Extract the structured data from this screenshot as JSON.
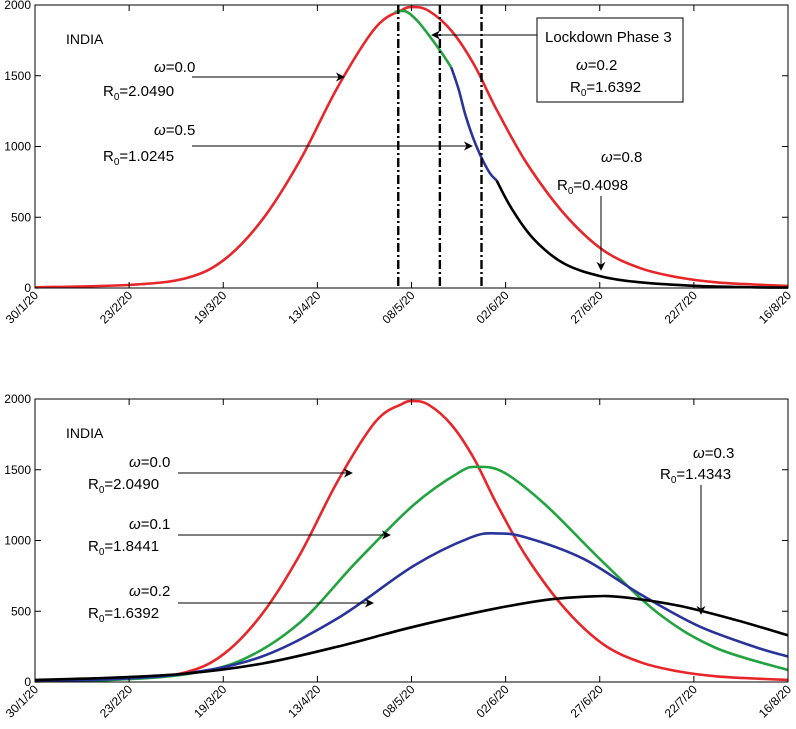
{
  "chart_data": [
    {
      "type": "line",
      "country_label": "INDIA",
      "x_tick_labels": [
        "30/1/20",
        "23/2/20",
        "19/3/20",
        "13/4/20",
        "08/5/20",
        "02/6/20",
        "27/6/20",
        "22/7/20",
        "16/8/20"
      ],
      "ylim": [
        0,
        2000
      ],
      "y_ticks": [
        0,
        500,
        1000,
        1500,
        2000
      ],
      "grid": false,
      "vertical_lines_day": [
        96,
        107,
        118
      ],
      "series": [
        {
          "color": "#e8262a",
          "points": [
            [
              0,
              5
            ],
            [
              25,
              22
            ],
            [
              40,
              70
            ],
            [
              50,
              200
            ],
            [
              60,
              480
            ],
            [
              70,
              900
            ],
            [
              80,
              1420
            ],
            [
              90,
              1840
            ],
            [
              97,
              1965
            ],
            [
              100,
              1985
            ],
            [
              104,
              1960
            ],
            [
              110,
              1820
            ],
            [
              116,
              1580
            ],
            [
              122,
              1260
            ],
            [
              130,
              880
            ],
            [
              140,
              520
            ],
            [
              150,
              270
            ],
            [
              160,
              140
            ],
            [
              170,
              75
            ],
            [
              180,
              40
            ],
            [
              190,
              25
            ],
            [
              199,
              15
            ]
          ]
        },
        {
          "color": "#21a33f",
          "points": [
            [
              95,
              1950
            ],
            [
              98,
              1955
            ],
            [
              101,
              1890
            ],
            [
              104,
              1790
            ],
            [
              107,
              1680
            ],
            [
              110,
              1560
            ]
          ]
        },
        {
          "color": "#29349a",
          "points": [
            [
              110,
              1560
            ],
            [
              112,
              1400
            ],
            [
              114,
              1200
            ],
            [
              117,
              980
            ],
            [
              120,
              820
            ],
            [
              122,
              760
            ]
          ]
        },
        {
          "color": "#000000",
          "points": [
            [
              122,
              760
            ],
            [
              126,
              560
            ],
            [
              132,
              340
            ],
            [
              140,
              170
            ],
            [
              150,
              80
            ],
            [
              160,
              40
            ],
            [
              175,
              15
            ],
            [
              190,
              5
            ],
            [
              199,
              3
            ]
          ]
        }
      ],
      "annotations": [
        {
          "omega": "=0.0",
          "r0": "=2.0490",
          "arrow_to": [
            71,
            1500
          ]
        },
        {
          "omega": "=0.5",
          "r0": "=1.0245",
          "arrow_to": [
            118,
            1000
          ]
        },
        {
          "omega": "=0.8",
          "r0": "=0.4098",
          "arrow_to": [
            123,
            90
          ]
        },
        {
          "box_title": "Lockdown Phase 3",
          "omega": "=0.2",
          "r0": "=1.6392",
          "arrow_to": [
            103,
            1780
          ]
        }
      ]
    },
    {
      "type": "line",
      "country_label": "INDIA",
      "x_tick_labels": [
        "30/1/20",
        "23/2/20",
        "19/3/20",
        "13/4/20",
        "08/5/20",
        "02/6/20",
        "27/6/20",
        "22/7/20",
        "16/8/20"
      ],
      "ylim": [
        0,
        2000
      ],
      "y_ticks": [
        0,
        500,
        1000,
        1500,
        2000
      ],
      "grid": false,
      "series": [
        {
          "color": "#e8262a",
          "points": [
            [
              0,
              5
            ],
            [
              25,
              22
            ],
            [
              40,
              70
            ],
            [
              50,
              200
            ],
            [
              60,
              480
            ],
            [
              70,
              900
            ],
            [
              80,
              1420
            ],
            [
              90,
              1840
            ],
            [
              97,
              1965
            ],
            [
              100,
              1985
            ],
            [
              104,
              1960
            ],
            [
              110,
              1820
            ],
            [
              116,
              1580
            ],
            [
              122,
              1260
            ],
            [
              130,
              880
            ],
            [
              140,
              520
            ],
            [
              150,
              270
            ],
            [
              160,
              140
            ],
            [
              170,
              75
            ],
            [
              180,
              40
            ],
            [
              190,
              25
            ],
            [
              199,
              15
            ]
          ]
        },
        {
          "color": "#21a33f",
          "points": [
            [
              0,
              5
            ],
            [
              20,
              15
            ],
            [
              40,
              55
            ],
            [
              55,
              160
            ],
            [
              70,
              420
            ],
            [
              85,
              850
            ],
            [
              100,
              1250
            ],
            [
              112,
              1480
            ],
            [
              117,
              1520
            ],
            [
              124,
              1480
            ],
            [
              135,
              1250
            ],
            [
              150,
              850
            ],
            [
              165,
              480
            ],
            [
              180,
              240
            ],
            [
              199,
              85
            ]
          ]
        },
        {
          "color": "#29349a",
          "points": [
            [
              0,
              8
            ],
            [
              20,
              20
            ],
            [
              40,
              60
            ],
            [
              60,
              180
            ],
            [
              80,
              450
            ],
            [
              100,
              820
            ],
            [
              115,
              1020
            ],
            [
              122,
              1050
            ],
            [
              130,
              1020
            ],
            [
              145,
              870
            ],
            [
              160,
              620
            ],
            [
              175,
              400
            ],
            [
              190,
              250
            ],
            [
              199,
              180
            ]
          ]
        },
        {
          "color": "#000000",
          "points": [
            [
              0,
              15
            ],
            [
              20,
              30
            ],
            [
              40,
              60
            ],
            [
              60,
              130
            ],
            [
              80,
              250
            ],
            [
              100,
              390
            ],
            [
              120,
              510
            ],
            [
              135,
              580
            ],
            [
              147,
              605
            ],
            [
              155,
              600
            ],
            [
              170,
              540
            ],
            [
              185,
              440
            ],
            [
              199,
              330
            ]
          ]
        }
      ],
      "annotations": [
        {
          "omega": "=0.0",
          "r0": "=2.0490",
          "arrow_to": [
            75,
            1500
          ]
        },
        {
          "omega": "=0.1",
          "r0": "=1.8441",
          "arrow_to": [
            75,
            1070
          ]
        },
        {
          "omega": "=0.2",
          "r0": "=1.6392",
          "arrow_to": [
            75,
            560
          ]
        },
        {
          "omega": "=0.3",
          "r0": "=1.4343",
          "arrow_to": [
            178,
            480
          ]
        }
      ]
    }
  ]
}
